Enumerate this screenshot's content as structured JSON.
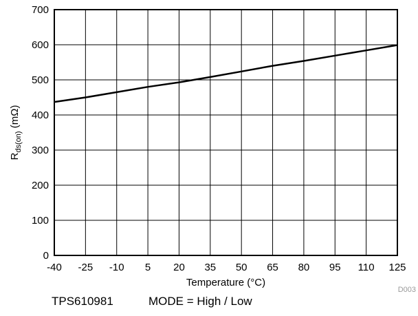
{
  "chart_data": {
    "type": "line",
    "title": "",
    "xlabel": "Temperature (°C)",
    "ylabel_main": "R",
    "ylabel_sub": "ds(on)",
    "ylabel_unit": " (mΩ)",
    "xlim": [
      -40,
      125
    ],
    "ylim": [
      0,
      700
    ],
    "xticks": [
      -40,
      -25,
      -10,
      5,
      20,
      35,
      50,
      65,
      80,
      95,
      110,
      125
    ],
    "yticks": [
      0,
      100,
      200,
      300,
      400,
      500,
      600,
      700
    ],
    "grid": true,
    "legend": "none",
    "series": [
      {
        "x": [
          -40,
          -25,
          -10,
          5,
          20,
          35,
          50,
          65,
          80,
          95,
          110,
          125
        ],
        "y": [
          437,
          450,
          465,
          480,
          493,
          508,
          524,
          540,
          554,
          569,
          584,
          599
        ],
        "color": "#000000"
      }
    ]
  },
  "figure_id": "D003",
  "caption": {
    "part_number": "TPS610981",
    "mode": "MODE = High / Low"
  }
}
